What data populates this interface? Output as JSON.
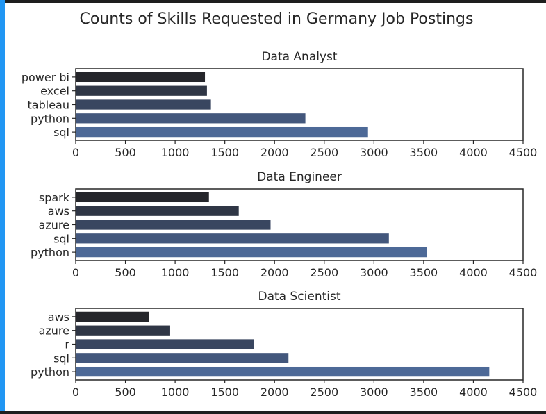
{
  "figure": {
    "title": "Counts of Skills Requested in Germany Job Postings"
  },
  "colors": {
    "bar_shades": [
      "#25262b",
      "#2f3645",
      "#394660",
      "#43577c",
      "#4d6997"
    ],
    "axis": "#262626",
    "text": "#262626"
  },
  "chart_data": [
    {
      "type": "bar",
      "orientation": "horizontal",
      "title": "Data Analyst",
      "categories": [
        "power bi",
        "excel",
        "tableau",
        "python",
        "sql"
      ],
      "values": [
        1300,
        1320,
        1360,
        2310,
        2940
      ],
      "xlim": [
        0,
        4500
      ],
      "xticks": [
        "0",
        "500",
        "1000",
        "1500",
        "2000",
        "2500",
        "3000",
        "3500",
        "4000",
        "4500"
      ],
      "xlabel": "",
      "ylabel": "",
      "grid": false
    },
    {
      "type": "bar",
      "orientation": "horizontal",
      "title": "Data Engineer",
      "categories": [
        "spark",
        "aws",
        "azure",
        "sql",
        "python"
      ],
      "values": [
        1340,
        1640,
        1960,
        3150,
        3530
      ],
      "xlim": [
        0,
        4500
      ],
      "xticks": [
        "0",
        "500",
        "1000",
        "1500",
        "2000",
        "2500",
        "3000",
        "3500",
        "4000",
        "4500"
      ],
      "xlabel": "",
      "ylabel": "",
      "grid": false
    },
    {
      "type": "bar",
      "orientation": "horizontal",
      "title": "Data Scientist",
      "categories": [
        "aws",
        "azure",
        "r",
        "sql",
        "python"
      ],
      "values": [
        740,
        950,
        1790,
        2140,
        4160
      ],
      "xlim": [
        0,
        4500
      ],
      "xticks": [
        "0",
        "500",
        "1000",
        "1500",
        "2000",
        "2500",
        "3000",
        "3500",
        "4000",
        "4500"
      ],
      "xlabel": "",
      "ylabel": "",
      "grid": false
    }
  ]
}
